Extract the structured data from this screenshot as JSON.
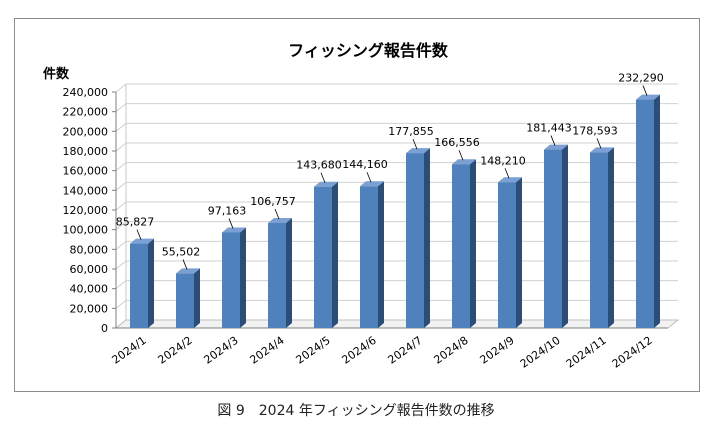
{
  "chart_data": {
    "type": "bar",
    "title": "フィッシング報告件数",
    "ylabel": "件数",
    "xlabel": "",
    "categories": [
      "2024/1",
      "2024/2",
      "2024/3",
      "2024/4",
      "2024/5",
      "2024/6",
      "2024/7",
      "2024/8",
      "2024/9",
      "2024/10",
      "2024/11",
      "2024/12"
    ],
    "values": [
      85827,
      55502,
      97163,
      106757,
      143680,
      144160,
      177855,
      166556,
      148210,
      181443,
      178593,
      232290
    ],
    "value_labels": [
      "85,827",
      "55,502",
      "97,163",
      "106,757",
      "143,680",
      "144,160",
      "177,855",
      "166,556",
      "148,210",
      "181,443",
      "178,593",
      "232,290"
    ],
    "y_ticks": [
      "0",
      "20,000",
      "40,000",
      "60,000",
      "80,000",
      "100,000",
      "120,000",
      "140,000",
      "160,000",
      "180,000",
      "200,000",
      "220,000",
      "240,000"
    ],
    "ylim": [
      0,
      240000
    ],
    "grid": true,
    "legend": "none",
    "style": "3d",
    "bar_color": "#4f81bd"
  },
  "caption": "図 9　2024 年フィッシング報告件数の推移"
}
